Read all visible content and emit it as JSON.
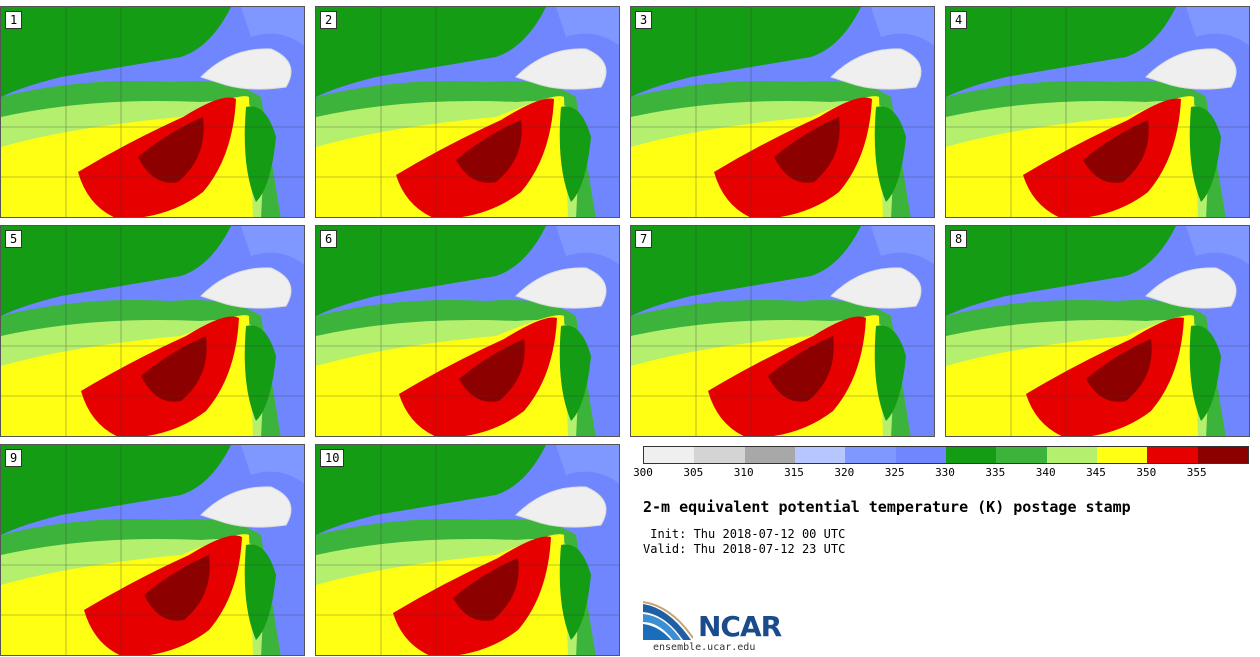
{
  "panels": [
    {
      "label": "1"
    },
    {
      "label": "2"
    },
    {
      "label": "3"
    },
    {
      "label": "4"
    },
    {
      "label": "5"
    },
    {
      "label": "6"
    },
    {
      "label": "7"
    },
    {
      "label": "8"
    },
    {
      "label": "9"
    },
    {
      "label": "10"
    }
  ],
  "colorbar": {
    "ticks": [
      "300",
      "305",
      "310",
      "315",
      "320",
      "325",
      "330",
      "335",
      "340",
      "345",
      "350",
      "355"
    ],
    "colors": [
      "#efefef",
      "#d4d4d4",
      "#a8a8a8",
      "#b8c6ff",
      "#7f98ff",
      "#6f86ff",
      "#149c14",
      "#3cb43c",
      "#b4f06e",
      "#ffff14",
      "#e60000",
      "#8c0000"
    ]
  },
  "title": "2-m equivalent potential temperature (K) postage stamp",
  "init": " Init: Thu 2018-07-12 00 UTC",
  "valid": "Valid: Thu 2018-07-12 23 UTC",
  "logo": {
    "text": "NCAR"
  },
  "url": "ensemble.ucar.edu"
}
